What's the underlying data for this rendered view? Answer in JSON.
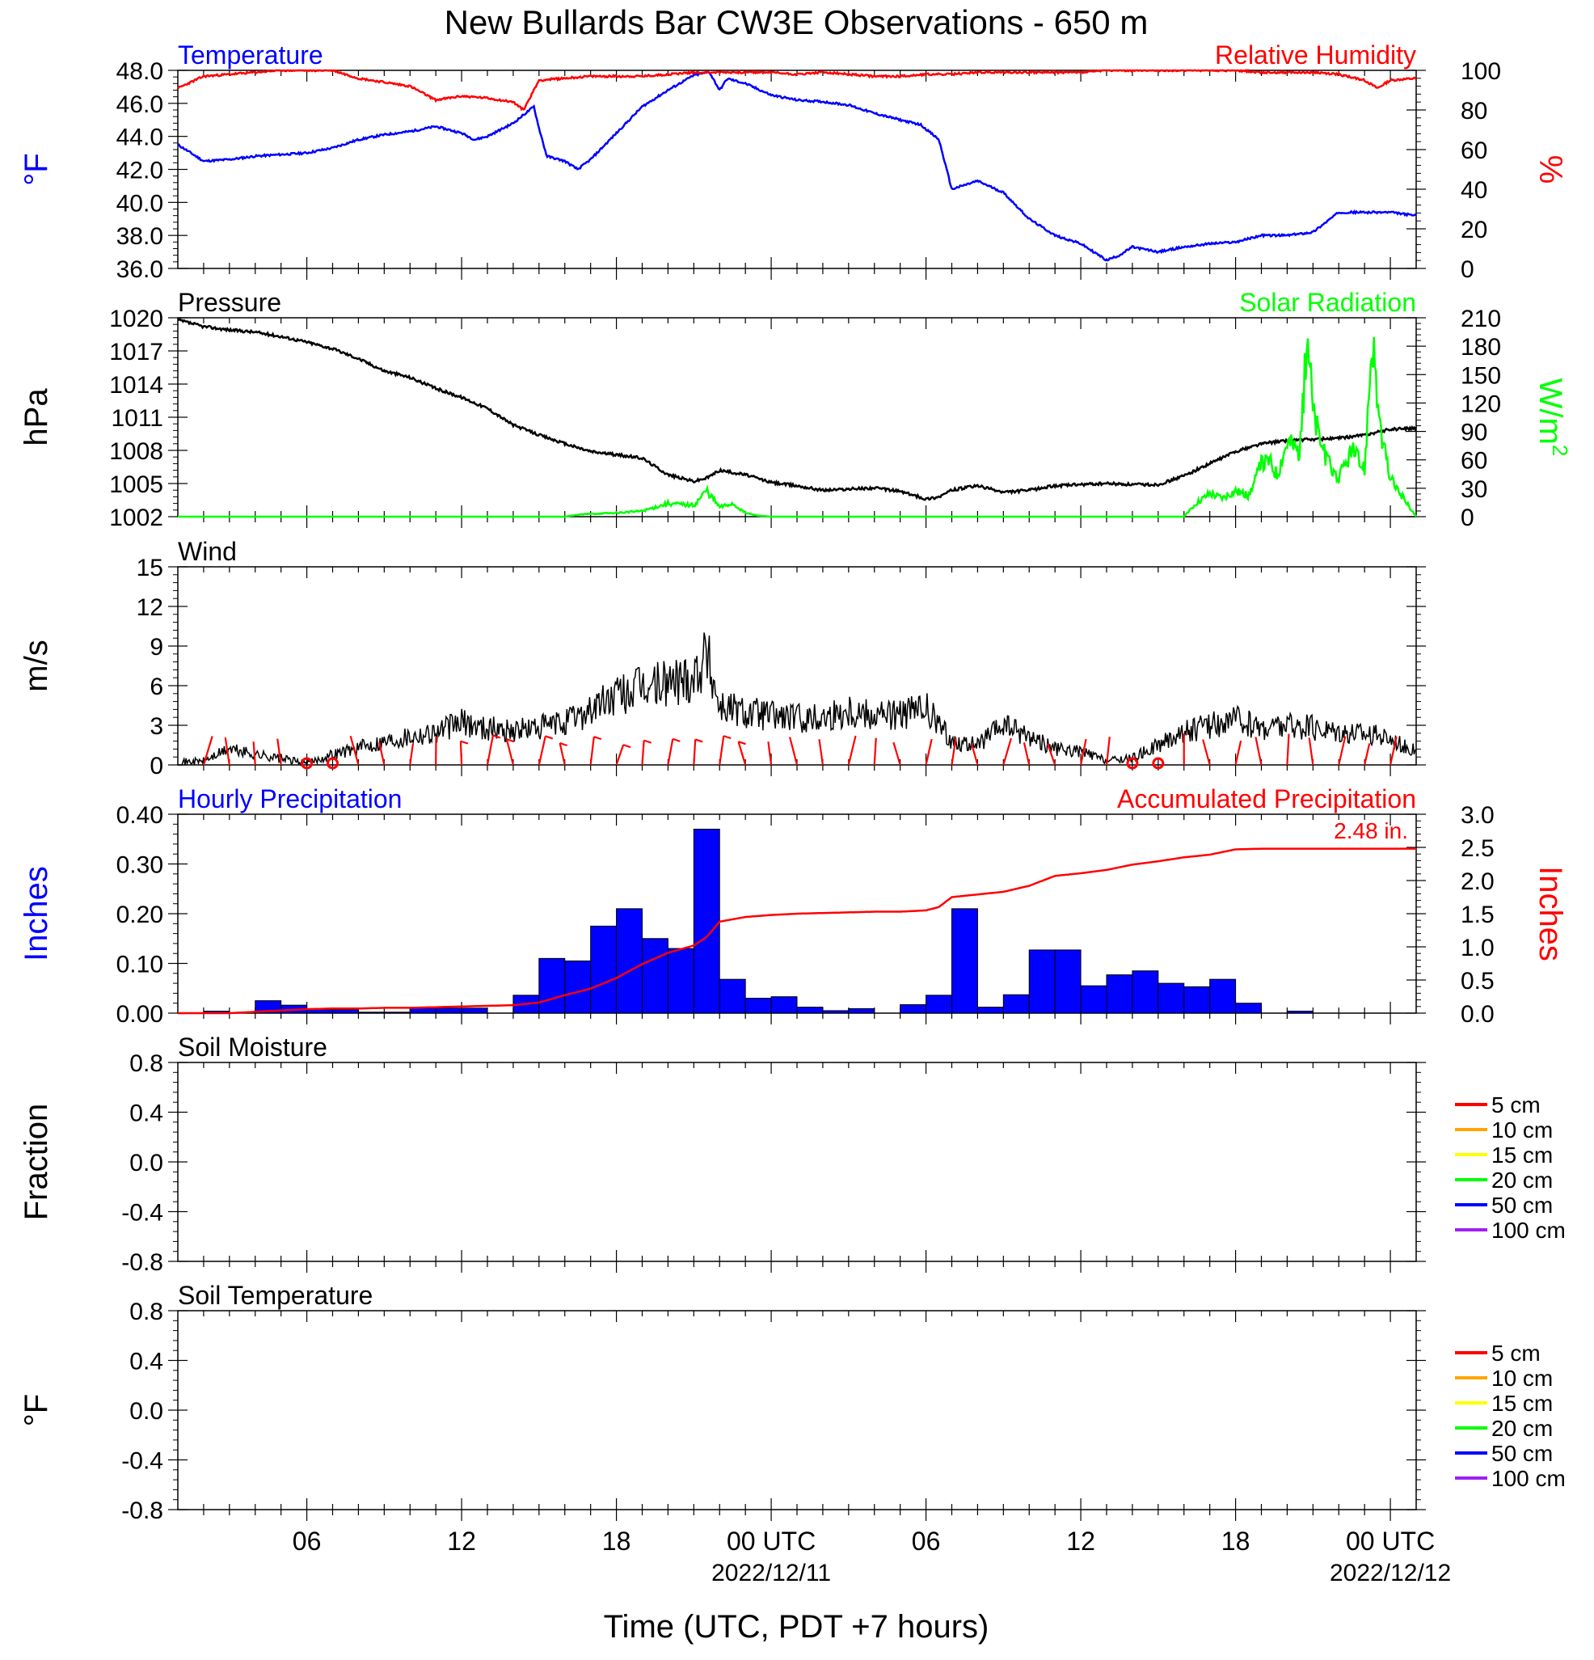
{
  "title": "New Bullards Bar CW3E Observations - 650 m",
  "x_axis": {
    "title": "Time (UTC, PDT +7 hours)",
    "ticks": [
      {
        "hour": 6,
        "label": "06"
      },
      {
        "hour": 12,
        "label": "12"
      },
      {
        "hour": 18,
        "label": "18"
      },
      {
        "hour": 24,
        "label": "00 UTC",
        "sublabel": "2022/12/11"
      },
      {
        "hour": 30,
        "label": "06"
      },
      {
        "hour": 36,
        "label": "12"
      },
      {
        "hour": 42,
        "label": "18"
      },
      {
        "hour": 48,
        "label": "00 UTC",
        "sublabel": "2022/12/12"
      }
    ],
    "range_hours": [
      1,
      49
    ]
  },
  "colors": {
    "temperature": "#0000ff",
    "humidity": "#ff0000",
    "pressure": "#000000",
    "solar": "#00ff00",
    "wind": "#000000",
    "barbs": "#ff0000",
    "hourly_precip": "#0000ff",
    "accum_precip": "#ff0000"
  },
  "panels": {
    "temperature": {
      "title_left": "Temperature",
      "title_right": "Relative Humidity",
      "ylabel_left": "°F",
      "ylabel_right": "%",
      "yticks_left": [
        "36.0",
        "38.0",
        "40.0",
        "42.0",
        "44.0",
        "46.0",
        "48.0"
      ],
      "yticks_right": [
        "0",
        "20",
        "40",
        "60",
        "80",
        "100"
      ]
    },
    "pressure": {
      "title_left": "Pressure",
      "title_right": "Solar Radiation",
      "ylabel_left": "hPa",
      "ylabel_right": "W/m",
      "ylabel_right_sup": "2",
      "yticks_left": [
        "1002",
        "1005",
        "1008",
        "1011",
        "1014",
        "1017",
        "1020"
      ],
      "yticks_right": [
        "0",
        "30",
        "60",
        "90",
        "120",
        "150",
        "180",
        "210"
      ]
    },
    "wind": {
      "title_left": "Wind",
      "ylabel_left": "m/s",
      "yticks_left": [
        "0",
        "3",
        "6",
        "9",
        "12",
        "15"
      ]
    },
    "precip": {
      "title_left": "Hourly Precipitation",
      "title_right": "Accumulated Precipitation",
      "total_label": "2.48 in.",
      "ylabel_left": "Inches",
      "ylabel_right": "Inches",
      "yticks_left": [
        "0.00",
        "0.10",
        "0.20",
        "0.30",
        "0.40"
      ],
      "yticks_right": [
        "0.0",
        "0.5",
        "1.0",
        "1.5",
        "2.0",
        "2.5",
        "3.0"
      ]
    },
    "soil_moisture": {
      "title_left": "Soil Moisture",
      "ylabel_left": "Fraction",
      "yticks_left": [
        "-0.8",
        "-0.4",
        "0.0",
        "0.4",
        "0.8"
      ],
      "legend": [
        {
          "label": "5 cm",
          "color": "#ff0000"
        },
        {
          "label": "10 cm",
          "color": "#ffa500"
        },
        {
          "label": "15 cm",
          "color": "#ffff00"
        },
        {
          "label": "20 cm",
          "color": "#00ff00"
        },
        {
          "label": "50 cm",
          "color": "#0000ff"
        },
        {
          "label": "100 cm",
          "color": "#a020f0"
        }
      ]
    },
    "soil_temperature": {
      "title_left": "Soil Temperature",
      "ylabel_left": "°F",
      "yticks_left": [
        "-0.8",
        "-0.4",
        "0.0",
        "0.4",
        "0.8"
      ],
      "legend": [
        {
          "label": "5 cm",
          "color": "#ff0000"
        },
        {
          "label": "10 cm",
          "color": "#ffa500"
        },
        {
          "label": "15 cm",
          "color": "#ffff00"
        },
        {
          "label": "20 cm",
          "color": "#00ff00"
        },
        {
          "label": "50 cm",
          "color": "#0000ff"
        },
        {
          "label": "100 cm",
          "color": "#a020f0"
        }
      ]
    }
  },
  "chart_data": [
    {
      "type": "line",
      "title": "Temperature",
      "ylabel": "°F",
      "ylim": [
        36,
        48
      ],
      "x": [
        1,
        2,
        3,
        4,
        5,
        6,
        7,
        8,
        9,
        10,
        11,
        12,
        12.5,
        13,
        14,
        14.8,
        15,
        15.3,
        16,
        16.5,
        17,
        18,
        19,
        20,
        21,
        21.6,
        22,
        22.3,
        23,
        24,
        25,
        26,
        27,
        28,
        29,
        29.8,
        30.5,
        31,
        32,
        33,
        34,
        35,
        36,
        37,
        37.5,
        38,
        39,
        40,
        41,
        42,
        43,
        44,
        45,
        46,
        47,
        48,
        49
      ],
      "series": [
        {
          "name": "Temperature",
          "values": [
            43.5,
            42.5,
            42.6,
            42.8,
            42.9,
            43.0,
            43.3,
            43.8,
            44.1,
            44.3,
            44.6,
            44.2,
            43.8,
            44.0,
            44.8,
            45.8,
            44.5,
            42.8,
            42.5,
            42.0,
            42.6,
            44.2,
            45.8,
            46.8,
            47.7,
            47.9,
            46.8,
            47.5,
            47.2,
            46.5,
            46.2,
            46.1,
            45.9,
            45.4,
            45.0,
            44.7,
            43.8,
            40.8,
            41.3,
            40.6,
            39.0,
            38.0,
            37.5,
            36.5,
            36.8,
            37.3,
            37.0,
            37.3,
            37.5,
            37.6,
            38.0,
            38.0,
            38.2,
            39.4,
            39.4,
            39.4,
            39.2
          ]
        }
      ]
    },
    {
      "type": "line",
      "title": "Relative Humidity",
      "ylabel": "%",
      "ylim": [
        0,
        100
      ],
      "x": [
        1,
        2,
        3,
        4,
        5,
        6,
        7,
        8,
        9,
        10,
        11,
        12,
        13,
        14,
        14.4,
        15,
        16,
        17,
        18,
        19,
        20,
        21,
        22,
        23,
        24,
        25,
        26,
        27,
        28,
        29,
        30,
        31,
        32,
        33,
        34,
        35,
        36,
        37,
        38,
        39,
        40,
        41,
        42,
        43,
        44,
        45,
        46,
        47,
        47.5,
        48,
        49
      ],
      "series": [
        {
          "name": "Relative Humidity",
          "values": [
            91,
            97,
            98,
            99,
            100,
            100,
            100,
            96,
            94,
            92,
            85,
            87,
            86,
            84,
            80,
            95,
            96,
            97,
            97,
            97,
            98,
            99,
            99,
            99,
            99,
            98,
            99,
            98,
            97,
            97,
            98,
            98,
            99,
            99,
            99,
            99,
            99,
            100,
            100,
            100,
            100,
            100,
            100,
            99,
            99,
            99,
            98,
            95,
            91,
            95,
            96
          ]
        }
      ]
    },
    {
      "type": "line",
      "title": "Pressure",
      "ylabel": "hPa",
      "ylim": [
        1002,
        1020
      ],
      "x": [
        1,
        2,
        3,
        4,
        5,
        6,
        7,
        8,
        9,
        10,
        11,
        12,
        13,
        14,
        15,
        16,
        17,
        18,
        19,
        20,
        21,
        21.5,
        22,
        23,
        24,
        25,
        26,
        27,
        28,
        29,
        30,
        30.5,
        31,
        32,
        33,
        34,
        35,
        36,
        37,
        38,
        39,
        40,
        41,
        42,
        43,
        44,
        45,
        46,
        47,
        48,
        49
      ],
      "series": [
        {
          "name": "Pressure",
          "values": [
            1019.8,
            1019.2,
            1018.9,
            1018.7,
            1018.3,
            1017.8,
            1017.2,
            1016.3,
            1015.2,
            1014.6,
            1013.6,
            1012.8,
            1011.8,
            1010.3,
            1009.4,
            1008.6,
            1007.9,
            1007.6,
            1007.3,
            1005.8,
            1005.2,
            1005.5,
            1006.2,
            1005.8,
            1005.1,
            1004.8,
            1004.4,
            1004.5,
            1004.6,
            1004.3,
            1003.6,
            1003.8,
            1004.4,
            1004.8,
            1004.2,
            1004.4,
            1004.8,
            1004.9,
            1005.0,
            1004.9,
            1004.9,
            1005.7,
            1006.8,
            1007.9,
            1008.6,
            1008.9,
            1009.0,
            1009.1,
            1009.4,
            1009.9,
            1010.0
          ]
        }
      ]
    },
    {
      "type": "line",
      "title": "Solar Radiation",
      "ylabel": "W/m2",
      "ylim": [
        0,
        210
      ],
      "x": [
        1,
        16,
        16.5,
        17,
        18,
        19,
        20,
        21,
        21.5,
        22,
        22.5,
        23,
        23.5,
        24,
        25,
        40,
        40.5,
        41,
        41.5,
        42,
        42.5,
        43,
        43.3,
        43.6,
        44,
        44.5,
        44.8,
        45,
        45.5,
        46,
        46.5,
        47,
        47.3,
        47.6,
        48,
        48.5,
        49
      ],
      "series": [
        {
          "name": "Solar Radiation",
          "values": [
            0,
            0,
            2,
            3,
            4,
            6,
            14,
            12,
            28,
            10,
            14,
            4,
            1,
            0,
            0,
            0,
            15,
            25,
            20,
            28,
            22,
            55,
            60,
            45,
            80,
            70,
            200,
            110,
            60,
            40,
            70,
            50,
            195,
            90,
            40,
            20,
            0
          ]
        }
      ]
    },
    {
      "type": "line",
      "title": "Wind",
      "ylabel": "m/s",
      "ylim": [
        0,
        15
      ],
      "x": [
        1,
        2,
        3,
        4,
        5,
        6,
        7,
        8,
        9,
        10,
        11,
        12,
        13,
        14,
        15,
        16,
        17,
        18,
        19,
        20,
        21,
        21.5,
        22,
        23,
        24,
        25,
        26,
        27,
        28,
        29,
        30,
        31,
        32,
        33,
        34,
        35,
        36,
        37,
        38,
        39,
        40,
        41,
        42,
        43,
        44,
        45,
        46,
        47,
        48,
        49
      ],
      "series": [
        {
          "name": "Wind",
          "values": [
            0.2,
            0.3,
            1.2,
            0.8,
            0.5,
            0.1,
            0.8,
            1.3,
            1.8,
            2.2,
            2.5,
            3.2,
            2.8,
            2.6,
            2.8,
            3.2,
            4.2,
            5.2,
            5.8,
            6.2,
            6.8,
            8.5,
            4.5,
            4.0,
            3.8,
            3.5,
            3.6,
            4.2,
            3.9,
            3.8,
            4.2,
            1.8,
            1.5,
            3.0,
            2.2,
            1.2,
            1.0,
            0.3,
            0.5,
            1.5,
            2.5,
            3.0,
            3.4,
            2.8,
            3.0,
            2.8,
            2.6,
            2.4,
            2.0,
            1.0
          ]
        }
      ]
    },
    {
      "type": "bar",
      "title": "Hourly Precipitation",
      "ylabel": "Inches",
      "ylim": [
        0,
        0.4
      ],
      "x": [
        1.5,
        2.5,
        3.5,
        4.5,
        5.5,
        6.5,
        7.5,
        8.5,
        9.5,
        10.5,
        11.5,
        12.5,
        13.5,
        14.5,
        15.5,
        16.5,
        17.5,
        18.5,
        19.5,
        20.5,
        21.5,
        22.5,
        23.5,
        24.5,
        25.5,
        26.5,
        27.5,
        28.5,
        29.5,
        30.5,
        31.5,
        32.5,
        33.5,
        34.5,
        35.5,
        36.5,
        37.5,
        38.5,
        39.5,
        40.5,
        41.5,
        42.5,
        43.5,
        44.5,
        45.5,
        46.5,
        47.5,
        48.5
      ],
      "values": [
        0,
        0.004,
        0,
        0.025,
        0.016,
        0.007,
        0.007,
        0.002,
        0.002,
        0.01,
        0.01,
        0.01,
        0,
        0.036,
        0.11,
        0.105,
        0.175,
        0.21,
        0.15,
        0.13,
        0.37,
        0.068,
        0.03,
        0.033,
        0.012,
        0.005,
        0.009,
        0,
        0.017,
        0.036,
        0.21,
        0.012,
        0.037,
        0.127,
        0.127,
        0.055,
        0.077,
        0.085,
        0.06,
        0.053,
        0.068,
        0.02,
        0,
        0.004,
        0,
        0,
        0,
        0
      ]
    },
    {
      "type": "line",
      "title": "Accumulated Precipitation",
      "ylabel": "Inches",
      "ylim": [
        0,
        3.0
      ],
      "x": [
        1,
        3,
        4,
        5,
        6,
        7,
        8,
        9,
        10,
        11,
        12,
        13,
        14,
        15,
        16,
        17,
        18,
        19,
        20,
        21,
        21.5,
        22,
        23,
        24,
        25,
        26,
        27,
        28,
        29,
        30,
        30.5,
        31,
        32,
        33,
        34,
        35,
        36,
        37,
        38,
        39,
        40,
        41,
        42,
        43,
        44,
        45,
        46,
        47,
        48,
        49
      ],
      "series": [
        {
          "name": "Accumulated Precipitation",
          "values": [
            0,
            0,
            0.02,
            0.04,
            0.06,
            0.07,
            0.07,
            0.08,
            0.08,
            0.09,
            0.1,
            0.11,
            0.12,
            0.16,
            0.27,
            0.37,
            0.53,
            0.74,
            0.91,
            1.02,
            1.15,
            1.38,
            1.45,
            1.48,
            1.5,
            1.51,
            1.52,
            1.53,
            1.53,
            1.55,
            1.6,
            1.75,
            1.79,
            1.83,
            1.92,
            2.07,
            2.11,
            2.16,
            2.24,
            2.29,
            2.35,
            2.39,
            2.47,
            2.48,
            2.48,
            2.48,
            2.48,
            2.48,
            2.48,
            2.48
          ]
        }
      ]
    }
  ]
}
